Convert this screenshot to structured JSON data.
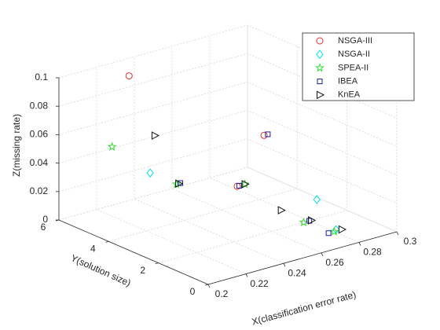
{
  "chart_data": {
    "type": "scatter3d",
    "xlabel": "X(classification error rate)",
    "ylabel": "Y(solution size)",
    "zlabel": "Z(missing rate)",
    "xlim": [
      0.2,
      0.3
    ],
    "xticks": [
      0.2,
      0.22,
      0.24,
      0.26,
      0.28,
      0.3
    ],
    "ylim": [
      0,
      6
    ],
    "yticks": [
      0,
      2,
      4,
      6
    ],
    "zlim": [
      0,
      0.1
    ],
    "zticks": [
      0,
      0.02,
      0.04,
      0.06,
      0.08,
      0.1
    ],
    "grid": true,
    "legend": "upper right",
    "series": [
      {
        "name": "NSGA-III",
        "color": "#e03030",
        "marker": "circle",
        "x": [
          0.224,
          0.256,
          0.255
        ],
        "y": [
          5,
          2,
          3
        ],
        "z": [
          0.1,
          0.069,
          0.026
        ]
      },
      {
        "name": "NSGA-II",
        "color": "#00e0f0",
        "marker": "diamond",
        "x": [
          0.222,
          0.284,
          0.281
        ],
        "y": [
          4,
          2,
          1
        ],
        "z": [
          0.04,
          0.0135,
          0.001
        ]
      },
      {
        "name": "SPEA-II",
        "color": "#33dd33",
        "marker": "star",
        "x": [
          0.215,
          0.236,
          0.259,
          0.277,
          0.28
        ],
        "y": [
          5,
          4,
          3,
          2,
          1
        ],
        "z": [
          0.0535,
          0.027,
          0.026,
          0,
          0
        ]
      },
      {
        "name": "IBEA",
        "color": "#1a1aa0",
        "marker": "square",
        "x": [
          0.258,
          0.238,
          0.256,
          0.28,
          0.277
        ],
        "y": [
          2,
          4,
          3,
          2,
          1
        ],
        "z": [
          0.069,
          0.027,
          0.026,
          0,
          0
        ]
      },
      {
        "name": "KnEA",
        "color": "#111111",
        "marker": "triangle-right",
        "x": [
          0.2376,
          0.237,
          0.259,
          0.265,
          0.281,
          0.284
        ],
        "y": [
          5,
          4,
          3,
          2,
          2,
          1
        ],
        "z": [
          0.053,
          0.027,
          0.026,
          0.013,
          0,
          0
        ]
      }
    ]
  }
}
